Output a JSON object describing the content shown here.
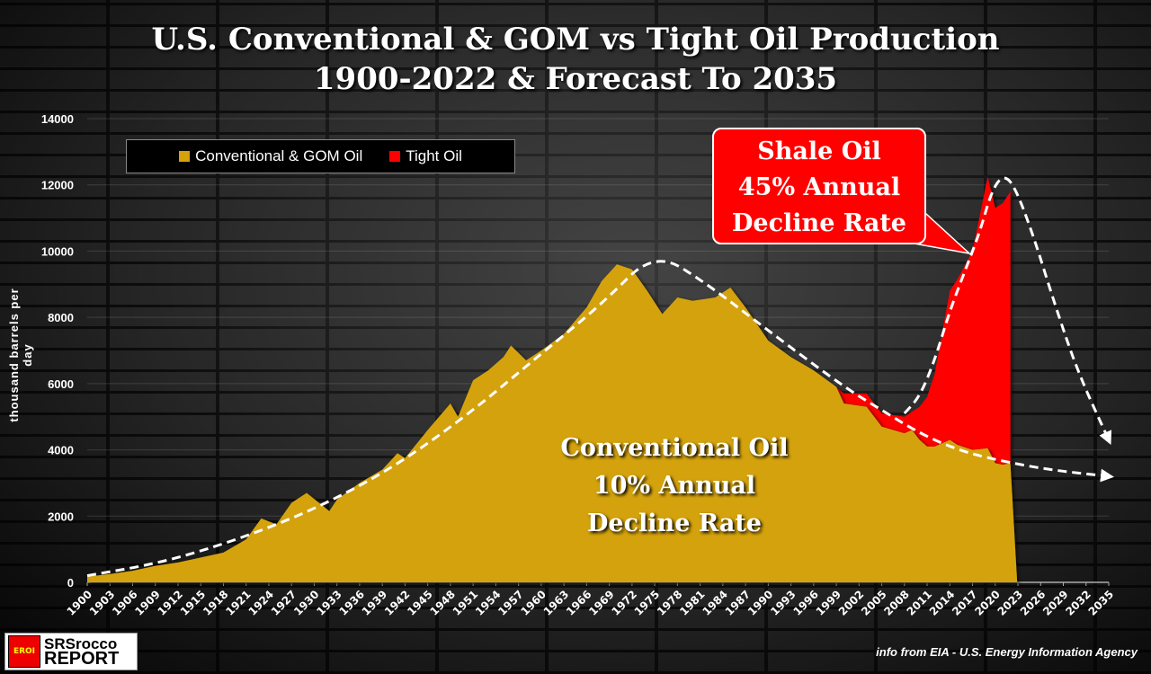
{
  "chart_data": {
    "type": "area",
    "stacked": true,
    "title": "U.S. Conventional & GOM vs Tight Oil Production",
    "subtitle": "1900-2022 & Forecast To 2035",
    "ylabel": "thousand barrels per day",
    "xlabel": "",
    "xlim": [
      1900,
      2035
    ],
    "ylim": [
      0,
      14000
    ],
    "yticks": [
      0,
      2000,
      4000,
      6000,
      8000,
      10000,
      12000,
      14000
    ],
    "xticks": [
      1900,
      1903,
      1906,
      1909,
      1912,
      1915,
      1918,
      1921,
      1924,
      1927,
      1930,
      1933,
      1936,
      1939,
      1942,
      1945,
      1948,
      1951,
      1954,
      1957,
      1960,
      1963,
      1966,
      1969,
      1972,
      1975,
      1978,
      1981,
      1984,
      1987,
      1990,
      1993,
      1996,
      1999,
      2002,
      2005,
      2008,
      2011,
      2014,
      2017,
      2020,
      2023,
      2026,
      2029,
      2032,
      2035
    ],
    "grid": true,
    "legend_placement": "top-left",
    "colors": {
      "conventional": "#d4a20a",
      "tight": "#ff0000",
      "trend": "#ffffff"
    },
    "x": [
      1900,
      1903,
      1906,
      1909,
      1912,
      1915,
      1918,
      1921,
      1923,
      1925,
      1927,
      1929,
      1932,
      1933,
      1936,
      1939,
      1941,
      1942,
      1945,
      1948,
      1949,
      1951,
      1953,
      1955,
      1956,
      1958,
      1960,
      1963,
      1966,
      1968,
      1970,
      1972,
      1974,
      1976,
      1978,
      1980,
      1983,
      1985,
      1987,
      1990,
      1993,
      1996,
      1999,
      2000,
      2003,
      2005,
      2008,
      2009,
      2010,
      2011,
      2012,
      2014,
      2015,
      2017,
      2019,
      2020,
      2021,
      2022
    ],
    "series": [
      {
        "name": "Conventional & GOM Oil",
        "values": [
          170,
          250,
          350,
          500,
          600,
          750,
          900,
          1300,
          1930,
          1750,
          2400,
          2700,
          2150,
          2500,
          3000,
          3400,
          3900,
          3750,
          4600,
          5400,
          5000,
          6100,
          6400,
          6800,
          7150,
          6700,
          7000,
          7500,
          8300,
          9100,
          9600,
          9450,
          8800,
          8100,
          8600,
          8500,
          8600,
          8900,
          8300,
          7300,
          6800,
          6400,
          5900,
          5400,
          5300,
          4700,
          4500,
          4600,
          4300,
          4100,
          4100,
          4300,
          4150,
          4000,
          4050,
          3600,
          3550,
          3600
        ]
      },
      {
        "name": "Tight Oil",
        "values": [
          0,
          0,
          0,
          0,
          0,
          0,
          0,
          0,
          0,
          0,
          0,
          0,
          0,
          0,
          0,
          0,
          0,
          0,
          0,
          0,
          0,
          0,
          0,
          0,
          0,
          0,
          0,
          0,
          0,
          0,
          0,
          0,
          0,
          0,
          0,
          0,
          0,
          0,
          0,
          0,
          0,
          0,
          0,
          300,
          400,
          400,
          500,
          550,
          1000,
          1500,
          2200,
          4500,
          5000,
          6000,
          8200,
          7700,
          7900,
          8200
        ]
      }
    ],
    "trend_lines": [
      {
        "target": "conventional",
        "points": [
          [
            1900,
            200
          ],
          [
            1910,
            600
          ],
          [
            1920,
            1300
          ],
          [
            1930,
            2200
          ],
          [
            1940,
            3400
          ],
          [
            1950,
            5000
          ],
          [
            1960,
            6900
          ],
          [
            1968,
            8400
          ],
          [
            1975,
            10000
          ],
          [
            1982,
            9000
          ],
          [
            1990,
            7600
          ],
          [
            2000,
            5900
          ],
          [
            2005,
            5200
          ],
          [
            2010,
            4500
          ],
          [
            2015,
            4000
          ],
          [
            2020,
            3700
          ],
          [
            2027,
            3400
          ],
          [
            2035,
            3200
          ]
        ]
      },
      {
        "target": "tight",
        "points": [
          [
            2008,
            5100
          ],
          [
            2010,
            5600
          ],
          [
            2012,
            6700
          ],
          [
            2014,
            8200
          ],
          [
            2016,
            9400
          ],
          [
            2018,
            10600
          ],
          [
            2019.5,
            11800
          ],
          [
            2021,
            12300
          ],
          [
            2022.5,
            12000
          ],
          [
            2025,
            10500
          ],
          [
            2028,
            8300
          ],
          [
            2031,
            6300
          ],
          [
            2035,
            4300
          ]
        ]
      }
    ],
    "annotations": {
      "shale": [
        "Shale Oil",
        "45% Annual",
        "Decline Rate"
      ],
      "conventional": [
        "Conventional Oil",
        "10% Annual",
        "Decline Rate"
      ]
    }
  },
  "legend": {
    "conventional": "Conventional & GOM Oil",
    "tight": "Tight Oil"
  },
  "branding": {
    "logo_badge": "EROI",
    "logo_line1": "SRSrocco",
    "logo_line2": "REPORT"
  },
  "source": "info from EIA - U.S. Energy Information Agency"
}
